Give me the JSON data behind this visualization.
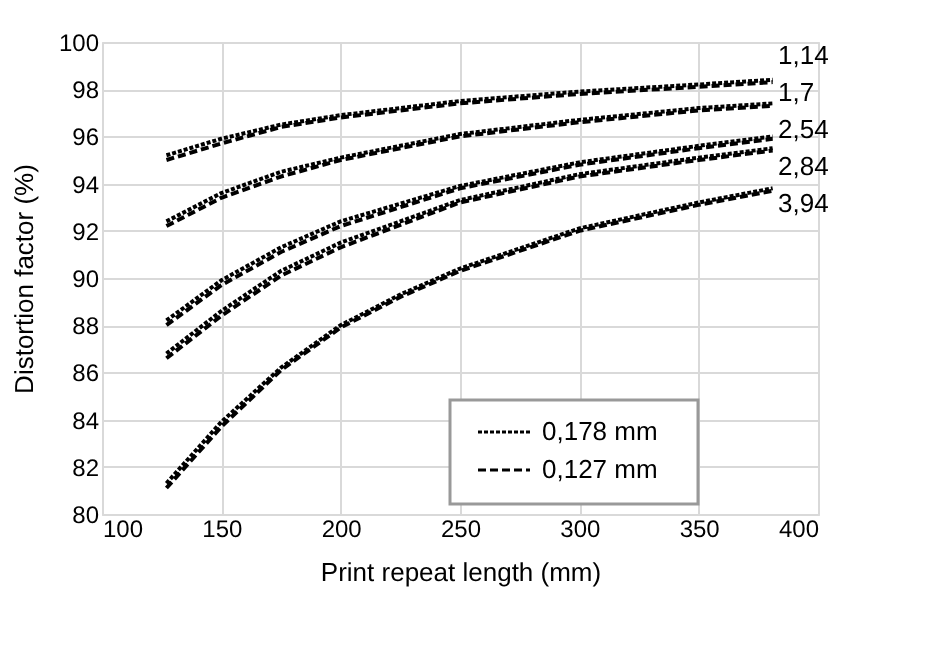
{
  "chart_data": {
    "type": "line",
    "xlabel": "Print repeat length (mm)",
    "ylabel": "Distortion factor (%)",
    "xlim": [
      100,
      400
    ],
    "xticks": [
      100,
      150,
      200,
      250,
      300,
      350,
      400
    ],
    "ylim": [
      80,
      100
    ],
    "yticks": [
      80,
      82,
      84,
      86,
      88,
      90,
      92,
      94,
      96,
      98,
      100
    ],
    "grid": true,
    "legend": "bottom right",
    "marker": "none",
    "annotations": [
      "1,14",
      "1,7",
      "2,54",
      "2,84",
      "3,94"
    ],
    "series": [
      {
        "name": "0,178 mm",
        "color": "#000000",
        "line_style": "dotted",
        "x": [
          127,
          150,
          175,
          200,
          250,
          300,
          350,
          381
        ],
        "values": [
          95.2,
          95.9,
          96.5,
          96.9,
          97.5,
          97.9,
          98.2,
          98.4
        ]
      },
      {
        "name": "0,127 mm",
        "color": "#000000",
        "line_style": "dashed",
        "x": [
          127,
          150,
          175,
          200,
          250,
          300,
          350,
          381
        ],
        "values": [
          95.0,
          95.7,
          96.4,
          96.8,
          97.4,
          97.8,
          98.1,
          98.3
        ]
      },
      {
        "color": "#000000",
        "line_style": "dotted",
        "x": [
          127,
          150,
          175,
          200,
          250,
          300,
          350,
          381
        ],
        "values": [
          92.4,
          93.6,
          94.5,
          95.1,
          96.1,
          96.7,
          97.2,
          97.4
        ]
      },
      {
        "color": "#000000",
        "line_style": "dashed",
        "x": [
          127,
          150,
          175,
          200,
          250,
          300,
          350,
          381
        ],
        "values": [
          92.2,
          93.4,
          94.3,
          95.0,
          96.0,
          96.6,
          97.1,
          97.3
        ]
      },
      {
        "color": "#000000",
        "line_style": "dotted",
        "x": [
          127,
          150,
          175,
          200,
          250,
          300,
          350,
          381
        ],
        "values": [
          88.2,
          89.9,
          91.3,
          92.4,
          93.9,
          94.9,
          95.6,
          96.0
        ]
      },
      {
        "color": "#000000",
        "line_style": "dashed",
        "x": [
          127,
          150,
          175,
          200,
          250,
          300,
          350,
          381
        ],
        "values": [
          88.0,
          89.7,
          91.1,
          92.2,
          93.8,
          94.8,
          95.5,
          95.9
        ]
      },
      {
        "color": "#000000",
        "line_style": "dotted",
        "x": [
          127,
          150,
          175,
          200,
          250,
          300,
          350,
          381
        ],
        "values": [
          86.8,
          88.6,
          90.3,
          91.5,
          93.3,
          94.4,
          95.1,
          95.5
        ]
      },
      {
        "color": "#000000",
        "line_style": "dashed",
        "x": [
          127,
          150,
          175,
          200,
          250,
          300,
          350,
          381
        ],
        "values": [
          86.6,
          88.4,
          90.1,
          91.3,
          93.2,
          94.3,
          95.0,
          95.4
        ]
      },
      {
        "color": "#000000",
        "line_style": "dotted",
        "x": [
          127,
          150,
          175,
          200,
          225,
          250,
          300,
          350,
          381
        ],
        "values": [
          81.3,
          83.9,
          86.2,
          88.0,
          89.3,
          90.4,
          92.1,
          93.2,
          93.8
        ]
      },
      {
        "color": "#000000",
        "line_style": "dashed",
        "x": [
          127,
          150,
          175,
          200,
          225,
          250,
          300,
          350,
          381
        ],
        "values": [
          81.1,
          83.7,
          86.1,
          87.9,
          89.2,
          90.3,
          92.0,
          93.1,
          93.7
        ]
      }
    ]
  }
}
